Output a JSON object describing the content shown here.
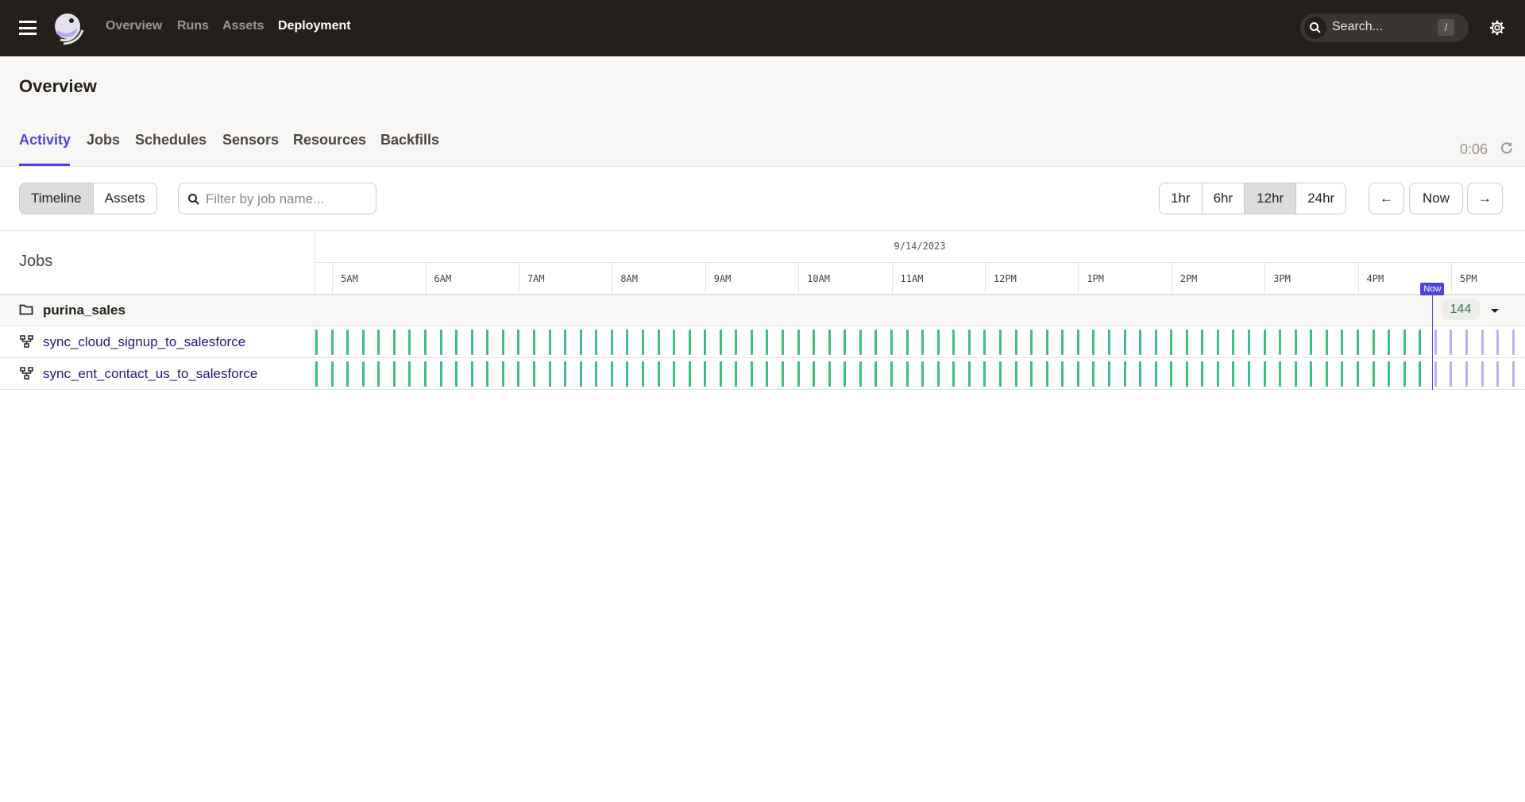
{
  "topbar": {
    "nav": [
      "Overview",
      "Runs",
      "Assets",
      "Deployment"
    ],
    "active_nav": "Deployment",
    "search_placeholder": "Search...",
    "search_shortcut": "/"
  },
  "page": {
    "title": "Overview",
    "tabs": [
      "Activity",
      "Jobs",
      "Schedules",
      "Sensors",
      "Resources",
      "Backfills"
    ],
    "active_tab": "Activity",
    "refresh_timer": "0:06"
  },
  "toolbar": {
    "view_toggle": [
      "Timeline",
      "Assets"
    ],
    "active_view": "Timeline",
    "filter_placeholder": "Filter by job name...",
    "ranges": [
      "1hr",
      "6hr",
      "12hr",
      "24hr"
    ],
    "active_range": "12hr",
    "prev_icon": "arrow-left-icon",
    "now_label": "Now",
    "next_icon": "arrow-right-icon"
  },
  "timeline": {
    "jobs_header": "Jobs",
    "date": "9/14/2023",
    "hours": [
      "5AM",
      "6AM",
      "7AM",
      "8AM",
      "9AM",
      "10AM",
      "11AM",
      "12PM",
      "1PM",
      "2PM",
      "3PM",
      "4PM",
      "5PM"
    ],
    "now_label": "Now",
    "now_time": "4:48PM",
    "group": {
      "name": "purina_sales",
      "run_count": "144"
    },
    "jobs": [
      {
        "name": "sync_cloud_signup_to_salesforce",
        "schedule_every_minutes": 10,
        "first_run": "4:50AM"
      },
      {
        "name": "sync_ent_contact_us_to_salesforce",
        "schedule_every_minutes": 10,
        "first_run": "4:50AM"
      }
    ],
    "colors": {
      "success": "#3fbf82",
      "scheduled": "#b9b1f2",
      "now": "#4f43dd"
    }
  }
}
